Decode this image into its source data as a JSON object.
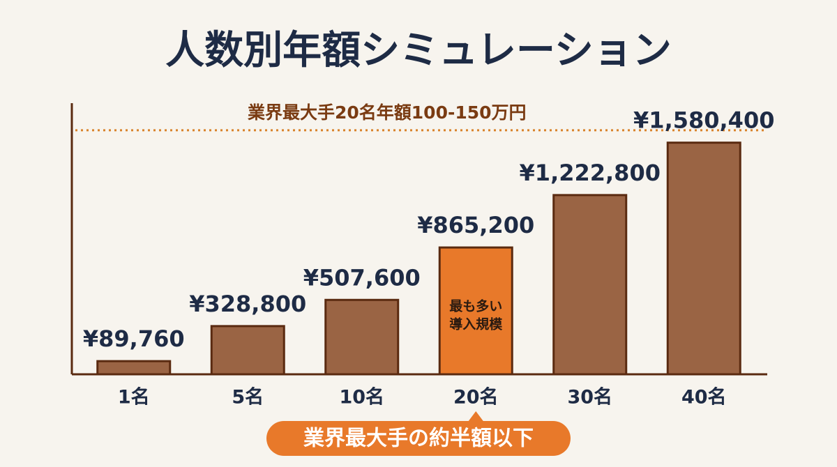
{
  "chart_data": {
    "type": "bar",
    "title": "人数別年額シミュレーション",
    "categories": [
      "1名",
      "5名",
      "10名",
      "20名",
      "30名",
      "40名"
    ],
    "values": [
      89760,
      328800,
      507600,
      865200,
      1222800,
      1580400
    ],
    "value_labels": [
      "¥89,760",
      "¥328,800",
      "¥507,600",
      "¥865,200",
      "¥1,222,800",
      "¥1,580,400"
    ],
    "color": "#9a6444",
    "outline_color": "#5a2a10",
    "highlight_index": 3,
    "highlight_color": "#e8792a",
    "highlight_label": [
      "最も多い",
      "導入規模"
    ],
    "ylim": [
      0,
      1850000
    ],
    "reference_line": {
      "value": 1665000,
      "label": "業界最大手20名年額100-150万円",
      "color": "#d9822b"
    },
    "annotation": "業界最大手の約半額以下"
  }
}
